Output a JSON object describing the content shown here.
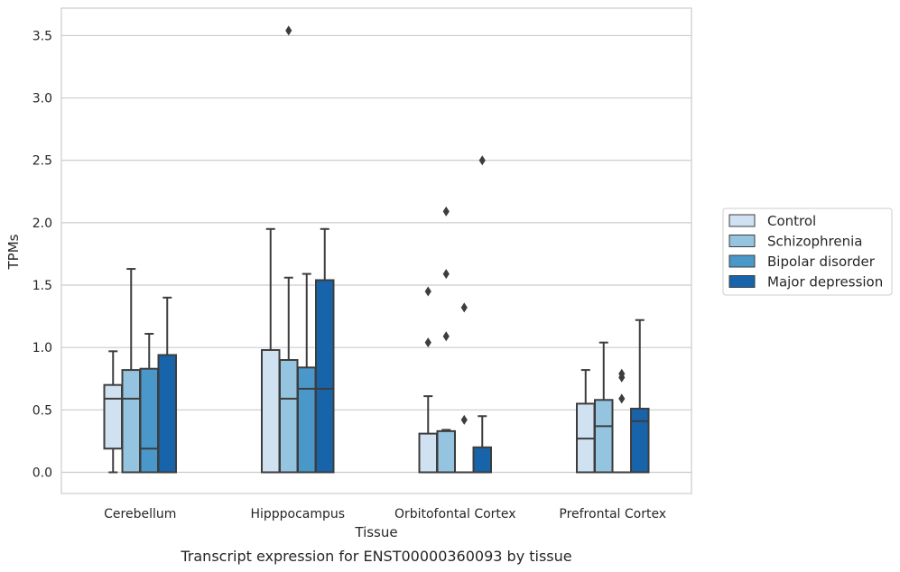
{
  "chart_data": {
    "type": "box",
    "title": "",
    "caption": "Transcript expression for ENST00000360093 by tissue",
    "xlabel": "Tissue",
    "ylabel": "TPMs",
    "ylim": [
      -0.17,
      3.72
    ],
    "yticks": [
      "0.0",
      "0.5",
      "1.0",
      "1.5",
      "2.0",
      "2.5",
      "3.0",
      "3.5"
    ],
    "grid": "horizontal",
    "legend_position": "right",
    "categories": [
      "Cerebellum",
      "Hipppocampus",
      "Orbitofontal Cortex",
      "Prefrontal Cortex"
    ],
    "series": [
      {
        "name": "Control",
        "color": "#d0e1f2",
        "boxes": [
          {
            "whislo": 0.0,
            "q1": 0.19,
            "med": 0.59,
            "q3": 0.7,
            "whishi": 0.97,
            "fliers": []
          },
          {
            "whislo": 0.0,
            "q1": 0.0,
            "med": 0.0,
            "q3": 0.98,
            "whishi": 1.95,
            "fliers": []
          },
          {
            "whislo": 0.0,
            "q1": 0.0,
            "med": 0.0,
            "q3": 0.31,
            "whishi": 0.61,
            "fliers": [
              1.04,
              1.45
            ]
          },
          {
            "whislo": 0.0,
            "q1": 0.0,
            "med": 0.27,
            "q3": 0.55,
            "whishi": 0.82,
            "fliers": []
          }
        ]
      },
      {
        "name": "Schizophrenia",
        "color": "#94c4df",
        "boxes": [
          {
            "whislo": 0.0,
            "q1": 0.0,
            "med": 0.59,
            "q3": 0.82,
            "whishi": 1.63,
            "fliers": []
          },
          {
            "whislo": 0.0,
            "q1": 0.0,
            "med": 0.59,
            "q3": 0.9,
            "whishi": 1.56,
            "fliers": [
              3.54
            ]
          },
          {
            "whislo": 0.0,
            "q1": 0.0,
            "med": 0.0,
            "q3": 0.33,
            "whishi": 0.34,
            "fliers": [
              1.09,
              1.59,
              2.09
            ]
          },
          {
            "whislo": 0.0,
            "q1": 0.0,
            "med": 0.37,
            "q3": 0.58,
            "whishi": 1.04,
            "fliers": []
          }
        ]
      },
      {
        "name": "Bipolar disorder",
        "color": "#4a98c9",
        "boxes": [
          {
            "whislo": 0.0,
            "q1": 0.0,
            "med": 0.19,
            "q3": 0.83,
            "whishi": 1.11,
            "fliers": []
          },
          {
            "whislo": 0.0,
            "q1": 0.0,
            "med": 0.67,
            "q3": 0.84,
            "whishi": 1.59,
            "fliers": []
          },
          {
            "whislo": 0.0,
            "q1": 0.0,
            "med": 0.0,
            "q3": 0.0,
            "whishi": 0.0,
            "fliers": [
              0.42,
              1.32
            ]
          },
          {
            "whislo": 0.0,
            "q1": 0.0,
            "med": 0.0,
            "q3": 0.0,
            "whishi": 0.0,
            "fliers": [
              0.59,
              0.76,
              0.79
            ]
          }
        ]
      },
      {
        "name": "Major depression",
        "color": "#1764ab",
        "boxes": [
          {
            "whislo": 0.0,
            "q1": 0.0,
            "med": 0.0,
            "q3": 0.94,
            "whishi": 1.4,
            "fliers": []
          },
          {
            "whislo": 0.0,
            "q1": 0.0,
            "med": 0.67,
            "q3": 1.54,
            "whishi": 1.95,
            "fliers": []
          },
          {
            "whislo": 0.0,
            "q1": 0.0,
            "med": 0.0,
            "q3": 0.2,
            "whishi": 0.45,
            "fliers": [
              2.5
            ]
          },
          {
            "whislo": 0.0,
            "q1": 0.0,
            "med": 0.41,
            "q3": 0.51,
            "whishi": 1.22,
            "fliers": []
          }
        ]
      }
    ]
  }
}
